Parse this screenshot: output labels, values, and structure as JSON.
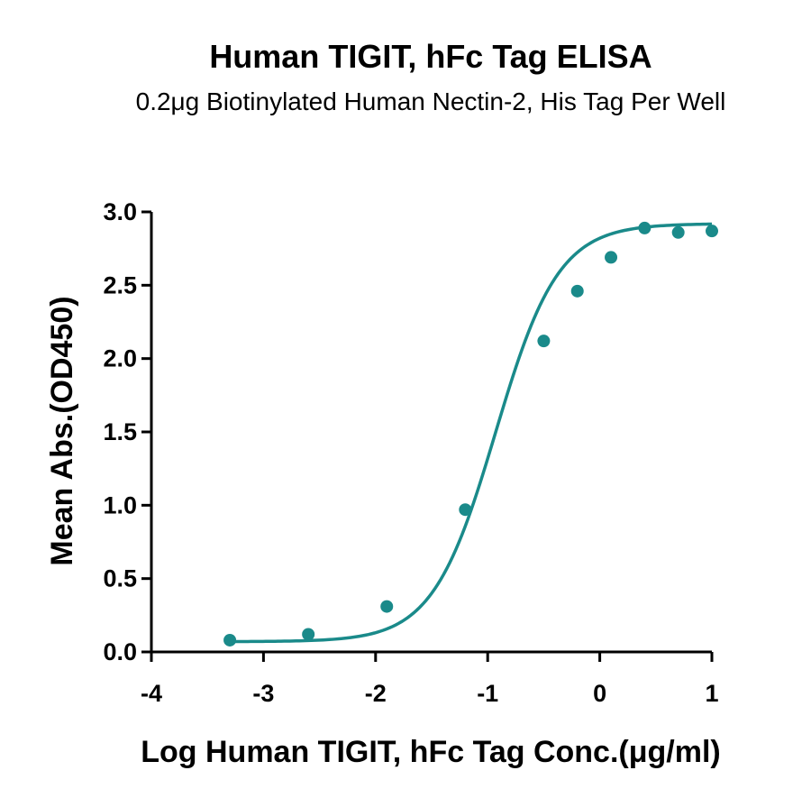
{
  "chart_data": {
    "type": "scatter",
    "title": "Human TIGIT, hFc Tag ELISA",
    "subtitle": "0.2μg Biotinylated Human Nectin-2, His Tag Per Well",
    "xlabel": "Log Human TIGIT, hFc Tag Conc.(μg/ml)",
    "ylabel": "Mean Abs.(OD450)",
    "xlim": [
      -4,
      1
    ],
    "ylim": [
      0,
      3
    ],
    "x_ticks": [
      -4,
      -3,
      -2,
      -1,
      0,
      1
    ],
    "x_tick_labels": [
      "-4",
      "-3",
      "-2",
      "-1",
      "0",
      "1"
    ],
    "y_ticks": [
      0,
      0.5,
      1,
      1.5,
      2,
      2.5,
      3
    ],
    "y_tick_labels": [
      "0.0",
      "0.5",
      "1.0",
      "1.5",
      "2.0",
      "2.5",
      "3.0"
    ],
    "grid": false,
    "legend": "none",
    "color": "#1a8a8a",
    "series": [
      {
        "x": [
          -3.3,
          -2.6,
          -1.9,
          -1.2,
          -0.5,
          -0.2,
          0.1,
          0.4,
          0.7,
          1.0
        ],
        "y": [
          0.08,
          0.12,
          0.31,
          0.97,
          2.12,
          2.46,
          2.69,
          2.89,
          2.86,
          2.87
        ]
      }
    ],
    "fit": {
      "model": "4PL",
      "bottom": 0.07,
      "top": 2.92,
      "log_ec50": -0.93,
      "hill": 1.55
    }
  }
}
